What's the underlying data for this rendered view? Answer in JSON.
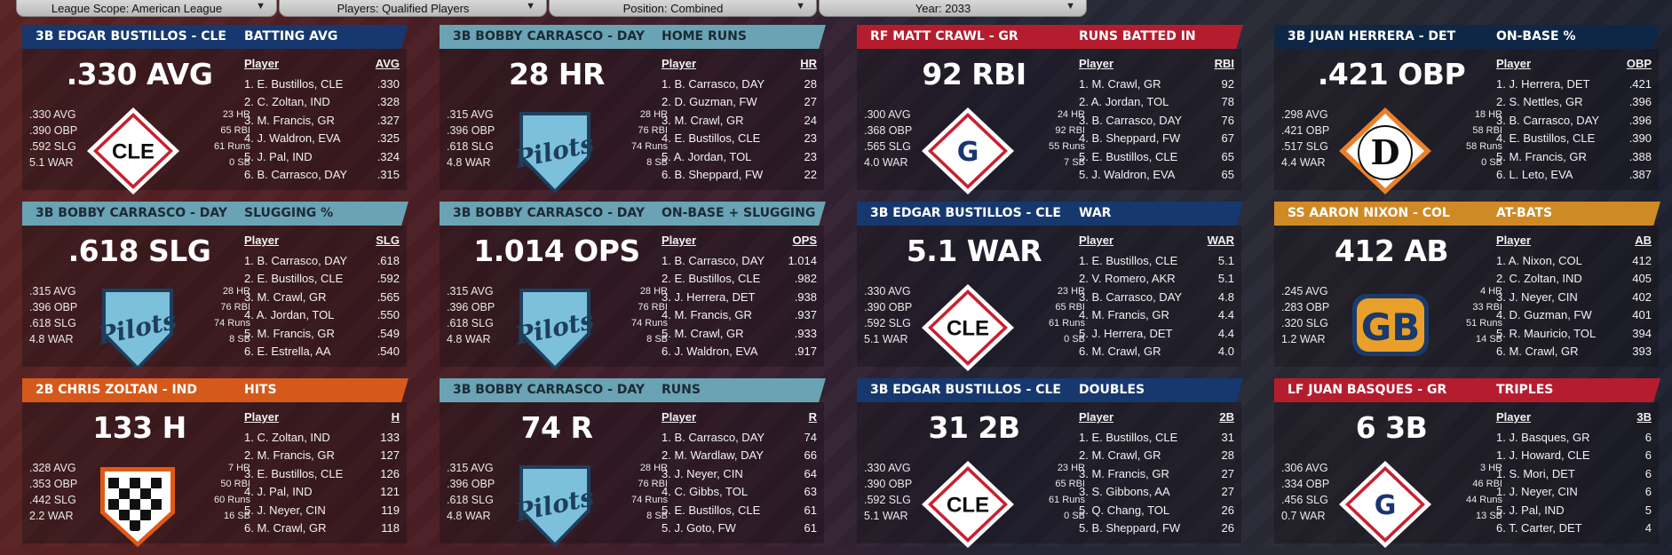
{
  "filters": [
    {
      "label": "League Scope: American League"
    },
    {
      "label": "Players: Qualified Players"
    },
    {
      "label": "Position: Combined"
    },
    {
      "label": "Year: 2033"
    }
  ],
  "colors": {
    "cle_header": "#16386e",
    "day_header": "#6aa3b4",
    "gr_header": "#b51d2f",
    "det_header": "#0f2747",
    "ind_header": "#d5591a",
    "col_header": "#cf8a26"
  },
  "columns_header": "Player",
  "cards": [
    {
      "who": "3B EDGAR BUSTILLOS - CLE",
      "stat": "BATTING AVG",
      "big": ".330 AVG",
      "logo": "cle-logo",
      "left": [
        ".330 AVG",
        ".390 OBP",
        ".592 SLG",
        "5.1 WAR"
      ],
      "right": [
        "23 HR",
        "65 RBI",
        "61 Runs",
        "0 SB"
      ],
      "col": "AVG",
      "rows": [
        [
          "1. E. Bustillos, CLE",
          ".330"
        ],
        [
          "2. C. Zoltan, IND",
          ".328"
        ],
        [
          "3. M. Francis, GR",
          ".327"
        ],
        [
          "4. J. Waldron, EVA",
          ".325"
        ],
        [
          "5. J. Pal, IND",
          ".324"
        ],
        [
          "6. B. Carrasco, DAY",
          ".315"
        ]
      ]
    },
    {
      "who": "3B BOBBY CARRASCO - DAY",
      "stat": "HOME RUNS",
      "big": "28 HR",
      "logo": "pilots-logo",
      "left": [
        ".315 AVG",
        ".396 OBP",
        ".618 SLG",
        "4.8 WAR"
      ],
      "right": [
        "28 HR",
        "76 RBI",
        "74 Runs",
        "8 SB"
      ],
      "col": "HR",
      "rows": [
        [
          "1. B. Carrasco, DAY",
          "28"
        ],
        [
          "2. D. Guzman, FW",
          "27"
        ],
        [
          "3. M. Crawl, GR",
          "24"
        ],
        [
          "4. E. Bustillos, CLE",
          "23"
        ],
        [
          "5. A. Jordan, TOL",
          "23"
        ],
        [
          "6. B. Sheppard, FW",
          "22"
        ]
      ]
    },
    {
      "who": "RF MATT CRAWL - GR",
      "stat": "RUNS BATTED IN",
      "big": "92 RBI",
      "logo": "gr-logo",
      "left": [
        ".300 AVG",
        ".368 OBP",
        ".565 SLG",
        "4.0 WAR"
      ],
      "right": [
        "24 HR",
        "92 RBI",
        "55 Runs",
        "7 SB"
      ],
      "col": "RBI",
      "rows": [
        [
          "1. M. Crawl, GR",
          "92"
        ],
        [
          "2. A. Jordan, TOL",
          "78"
        ],
        [
          "3. B. Carrasco, DAY",
          "76"
        ],
        [
          "4. B. Sheppard, FW",
          "67"
        ],
        [
          "5. E. Bustillos, CLE",
          "65"
        ],
        [
          "5. J. Waldron, EVA",
          "65"
        ]
      ]
    },
    {
      "who": "3B JUAN HERRERA - DET",
      "stat": "ON-BASE %",
      "big": ".421 OBP",
      "logo": "det-logo",
      "left": [
        ".298 AVG",
        ".421 OBP",
        ".517 SLG",
        "4.4 WAR"
      ],
      "right": [
        "18 HR",
        "58 RBI",
        "58 Runs",
        "0 SB"
      ],
      "col": "OBP",
      "rows": [
        [
          "1. J. Herrera, DET",
          ".421"
        ],
        [
          "2. S. Nettles, GR",
          ".396"
        ],
        [
          "3. B. Carrasco, DAY",
          ".396"
        ],
        [
          "4. E. Bustillos, CLE",
          ".390"
        ],
        [
          "5. M. Francis, GR",
          ".388"
        ],
        [
          "6. L. Leto, EVA",
          ".387"
        ]
      ]
    },
    {
      "who": "3B BOBBY CARRASCO - DAY",
      "stat": "SLUGGING %",
      "big": ".618 SLG",
      "logo": "pilots-logo",
      "left": [
        ".315 AVG",
        ".396 OBP",
        ".618 SLG",
        "4.8 WAR"
      ],
      "right": [
        "28 HR",
        "76 RBI",
        "74 Runs",
        "8 SB"
      ],
      "col": "SLG",
      "rows": [
        [
          "1. B. Carrasco, DAY",
          ".618"
        ],
        [
          "2. E. Bustillos, CLE",
          ".592"
        ],
        [
          "3. M. Crawl, GR",
          ".565"
        ],
        [
          "4. A. Jordan, TOL",
          ".550"
        ],
        [
          "5. M. Francis, GR",
          ".549"
        ],
        [
          "6. E. Estrella, AA",
          ".540"
        ]
      ]
    },
    {
      "who": "3B BOBBY CARRASCO - DAY",
      "stat": "ON-BASE + SLUGGING",
      "big": "1.014 OPS",
      "logo": "pilots-logo",
      "left": [
        ".315 AVG",
        ".396 OBP",
        ".618 SLG",
        "4.8 WAR"
      ],
      "right": [
        "28 HR",
        "76 RBI",
        "74 Runs",
        "8 SB"
      ],
      "col": "OPS",
      "rows": [
        [
          "1. B. Carrasco, DAY",
          "1.014"
        ],
        [
          "2. E. Bustillos, CLE",
          ".982"
        ],
        [
          "3. J. Herrera, DET",
          ".938"
        ],
        [
          "4. M. Francis, GR",
          ".937"
        ],
        [
          "5. M. Crawl, GR",
          ".933"
        ],
        [
          "6. J. Waldron, EVA",
          ".917"
        ]
      ]
    },
    {
      "who": "3B EDGAR BUSTILLOS - CLE",
      "stat": "WAR",
      "big": "5.1 WAR",
      "logo": "cle-logo",
      "left": [
        ".330 AVG",
        ".390 OBP",
        ".592 SLG",
        "5.1 WAR"
      ],
      "right": [
        "23 HR",
        "65 RBI",
        "61 Runs",
        "0 SB"
      ],
      "col": "WAR",
      "rows": [
        [
          "1. E. Bustillos, CLE",
          "5.1"
        ],
        [
          "2. V. Romero, AKR",
          "5.1"
        ],
        [
          "3. B. Carrasco, DAY",
          "4.8"
        ],
        [
          "4. M. Francis, GR",
          "4.4"
        ],
        [
          "5. J. Herrera, DET",
          "4.4"
        ],
        [
          "6. M. Crawl, GR",
          "4.0"
        ]
      ]
    },
    {
      "who": "SS AARON NIXON - COL",
      "stat": "AT-BATS",
      "big": "412 AB",
      "logo": "gb-logo",
      "left": [
        ".245 AVG",
        ".283 OBP",
        ".320 SLG",
        "1.2 WAR"
      ],
      "right": [
        "4 HR",
        "33 RBI",
        "51 Runs",
        "14 SB"
      ],
      "col": "AB",
      "rows": [
        [
          "1. A. Nixon, COL",
          "412"
        ],
        [
          "2. C. Zoltan, IND",
          "405"
        ],
        [
          "3. J. Neyer, CIN",
          "402"
        ],
        [
          "4. D. Guzman, FW",
          "401"
        ],
        [
          "5. R. Mauricio, TOL",
          "394"
        ],
        [
          "6. M. Crawl, GR",
          "393"
        ]
      ]
    },
    {
      "who": "2B CHRIS ZOLTAN - IND",
      "stat": "HITS",
      "big": "133 H",
      "logo": "ind-logo",
      "left": [
        ".328 AVG",
        ".353 OBP",
        ".442 SLG",
        "2.2 WAR"
      ],
      "right": [
        "7 HR",
        "50 RBI",
        "60 Runs",
        "16 SB"
      ],
      "col": "H",
      "rows": [
        [
          "1. C. Zoltan, IND",
          "133"
        ],
        [
          "2. M. Francis, GR",
          "127"
        ],
        [
          "3. E. Bustillos, CLE",
          "126"
        ],
        [
          "4. J. Pal, IND",
          "121"
        ],
        [
          "5. J. Neyer, CIN",
          "119"
        ],
        [
          "6. M. Crawl, GR",
          "118"
        ]
      ]
    },
    {
      "who": "3B BOBBY CARRASCO - DAY",
      "stat": "RUNS",
      "big": "74 R",
      "logo": "pilots-logo",
      "left": [
        ".315 AVG",
        ".396 OBP",
        ".618 SLG",
        "4.8 WAR"
      ],
      "right": [
        "28 HR",
        "76 RBI",
        "74 Runs",
        "8 SB"
      ],
      "col": "R",
      "rows": [
        [
          "1. B. Carrasco, DAY",
          "74"
        ],
        [
          "2. M. Wardlaw, DAY",
          "66"
        ],
        [
          "3. J. Neyer, CIN",
          "64"
        ],
        [
          "4. C. Gibbs, TOL",
          "63"
        ],
        [
          "5. E. Bustillos, CLE",
          "61"
        ],
        [
          "5. J. Goto, FW",
          "61"
        ]
      ]
    },
    {
      "who": "3B EDGAR BUSTILLOS - CLE",
      "stat": "DOUBLES",
      "big": "31 2B",
      "logo": "cle-logo",
      "left": [
        ".330 AVG",
        ".390 OBP",
        ".592 SLG",
        "5.1 WAR"
      ],
      "right": [
        "23 HR",
        "65 RBI",
        "61 Runs",
        "0 SB"
      ],
      "col": "2B",
      "rows": [
        [
          "1. E. Bustillos, CLE",
          "31"
        ],
        [
          "2. M. Crawl, GR",
          "28"
        ],
        [
          "3. M. Francis, GR",
          "27"
        ],
        [
          "3. S. Gibbons, AA",
          "27"
        ],
        [
          "5. Q. Chang, TOL",
          "26"
        ],
        [
          "5. B. Sheppard, FW",
          "26"
        ]
      ]
    },
    {
      "who": "LF JUAN BASQUES - GR",
      "stat": "TRIPLES",
      "big": "6 3B",
      "logo": "gr-logo",
      "left": [
        ".306 AVG",
        ".334 OBP",
        ".456 SLG",
        "0.7 WAR"
      ],
      "right": [
        "3 HR",
        "46 RBI",
        "44 Runs",
        "13 SB"
      ],
      "col": "3B",
      "rows": [
        [
          "1. J. Basques, GR",
          "6"
        ],
        [
          "1. J. Howard, CLE",
          "6"
        ],
        [
          "1. S. Mori, DET",
          "6"
        ],
        [
          "1. J. Neyer, CIN",
          "6"
        ],
        [
          "5. J. Pal, IND",
          "5"
        ],
        [
          "6. T. Carter, DET",
          "4"
        ]
      ]
    }
  ],
  "logo_text": {
    "cle": "CLE",
    "gr": "G",
    "det": "D",
    "gb": "GB",
    "pilots": "Pilots"
  }
}
